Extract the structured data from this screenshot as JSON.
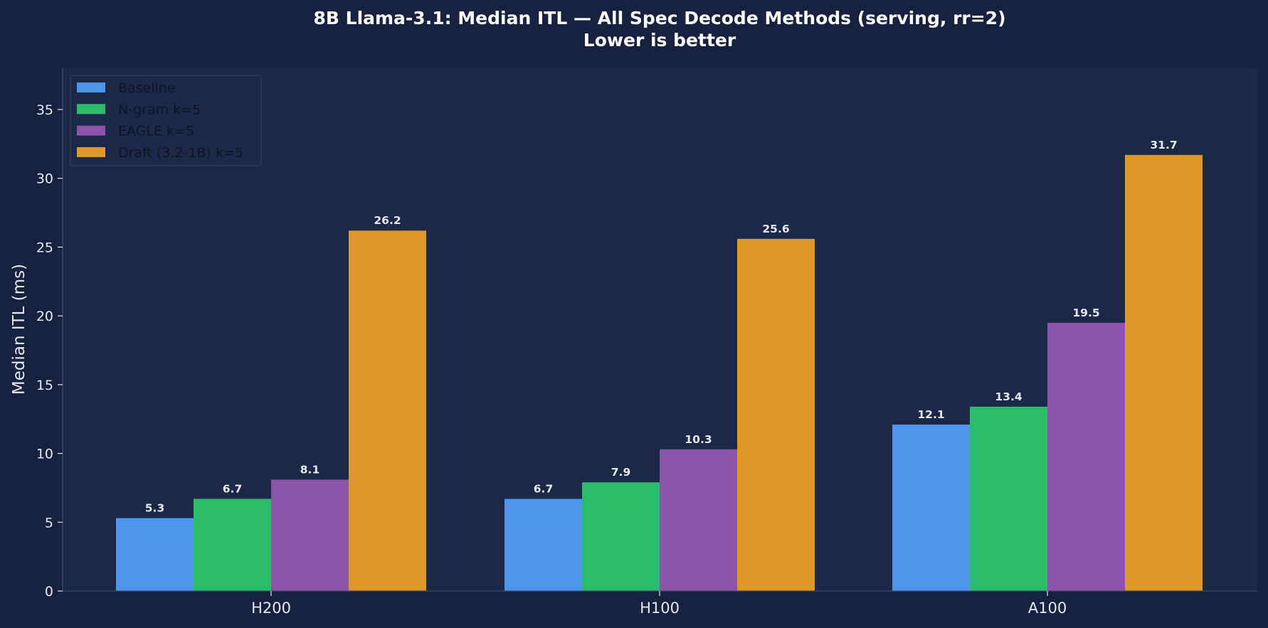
{
  "chart_data": {
    "type": "bar",
    "title": "8B Llama-3.1: Median ITL — All Spec Decode Methods (serving, rr=2)",
    "subtitle": "Lower is better",
    "xlabel": "",
    "ylabel": "Median ITL (ms)",
    "ylim": [
      0,
      38
    ],
    "yticks": [
      0,
      5,
      10,
      15,
      20,
      25,
      30,
      35
    ],
    "grid": false,
    "legend_position": "top-left",
    "categories": [
      "H200",
      "H100",
      "A100"
    ],
    "series": [
      {
        "name": "Baseline",
        "color": "#4f95ee",
        "values": [
          5.3,
          6.7,
          12.1
        ],
        "labels": [
          "5.3",
          "6.7",
          "12.1"
        ]
      },
      {
        "name": "N-gram k=5",
        "color": "#2bbb6b",
        "values": [
          6.7,
          7.9,
          13.4
        ],
        "labels": [
          "6.7",
          "7.9",
          "13.4"
        ]
      },
      {
        "name": "EAGLE k=5",
        "color": "#8c54aa",
        "values": [
          8.1,
          10.3,
          19.5
        ],
        "labels": [
          "8.1",
          "10.3",
          "19.5"
        ]
      },
      {
        "name": "Draft (3.2-1B) k=5",
        "color": "#df9826",
        "values": [
          26.2,
          25.6,
          31.7
        ],
        "labels": [
          "26.2",
          "25.6",
          "31.7"
        ]
      }
    ]
  }
}
